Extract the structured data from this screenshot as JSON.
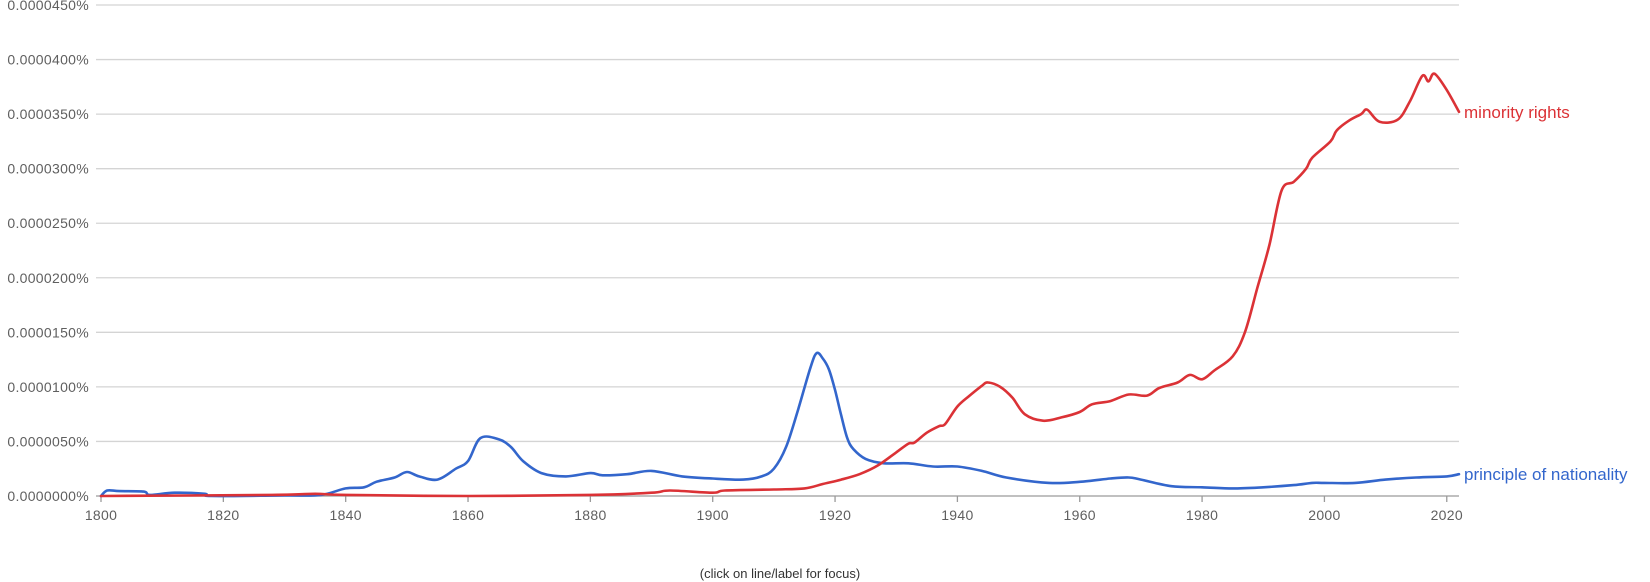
{
  "chart_data": {
    "type": "line",
    "title": "",
    "xlabel": "",
    "ylabel": "",
    "caption": "(click on line/label for focus)",
    "xlim": [
      1800,
      2022
    ],
    "ylim": [
      0,
      4.5e-05
    ],
    "y_unit": "percent",
    "grid": true,
    "legend_position": "inline-right",
    "x_ticks": [
      1800,
      1820,
      1840,
      1860,
      1880,
      1900,
      1920,
      1940,
      1960,
      1980,
      2000,
      2020
    ],
    "x_tick_labels": [
      "1800",
      "1820",
      "1840",
      "1860",
      "1880",
      "1900",
      "1920",
      "1940",
      "1960",
      "1980",
      "2000",
      "2020"
    ],
    "y_ticks": [
      0,
      5e-06,
      1e-05,
      1.5e-05,
      2e-05,
      2.5e-05,
      3e-05,
      3.5e-05,
      4e-05,
      4.5e-05
    ],
    "y_tick_labels": [
      "0.0000000%",
      "0.0000050%",
      "0.0000100%",
      "0.0000150%",
      "0.0000200%",
      "0.0000250%",
      "0.0000300%",
      "0.0000350%",
      "0.0000400%",
      "0.0000450%"
    ],
    "series": [
      {
        "name": "minority rights",
        "color": "#db3236",
        "x": [
          1800,
          1828,
          1835,
          1840,
          1860,
          1880,
          1890,
          1893,
          1900,
          1902,
          1910,
          1915,
          1918,
          1921,
          1924,
          1927,
          1930,
          1932,
          1933,
          1935,
          1937,
          1938,
          1940,
          1942,
          1944,
          1945,
          1947,
          1949,
          1951,
          1954,
          1957,
          1960,
          1962,
          1965,
          1968,
          1971,
          1973,
          1976,
          1978,
          1980,
          1982,
          1985,
          1987,
          1989,
          1991,
          1993,
          1995,
          1997,
          1998,
          2001,
          2002,
          2004,
          2006,
          2007,
          2009,
          2012,
          2014,
          2016,
          2017,
          2018,
          2020,
          2022
        ],
        "values": [
          0,
          1e-07,
          2e-07,
          1e-07,
          0,
          1e-07,
          3e-07,
          5e-07,
          3e-07,
          5e-07,
          6e-07,
          7e-07,
          1.1e-06,
          1.5e-06,
          2e-06,
          2.8e-06,
          4e-06,
          4.8e-06,
          4.9e-06,
          5.8e-06,
          6.4e-06,
          6.6e-06,
          8.2e-06,
          9.2e-06,
          1.01e-05,
          1.04e-05,
          1e-05,
          9e-06,
          7.5e-06,
          6.9e-06,
          7.2e-06,
          7.7e-06,
          8.4e-06,
          8.7e-06,
          9.3e-06,
          9.2e-06,
          9.9e-06,
          1.04e-05,
          1.11e-05,
          1.07e-05,
          1.15e-05,
          1.28e-05,
          1.5e-05,
          1.9e-05,
          2.3e-05,
          2.8e-05,
          2.88e-05,
          3e-05,
          3.1e-05,
          3.25e-05,
          3.35e-05,
          3.44e-05,
          3.5e-05,
          3.54e-05,
          3.43e-05,
          3.45e-05,
          3.62e-05,
          3.85e-05,
          3.8e-05,
          3.87e-05,
          3.72e-05,
          3.52e-05
        ]
      },
      {
        "name": "principle of nationality",
        "color": "#3366cc",
        "x": [
          1800,
          1801,
          1803,
          1807,
          1808,
          1812,
          1817,
          1818,
          1830,
          1836,
          1840,
          1843,
          1845,
          1848,
          1850,
          1852,
          1855,
          1858,
          1860,
          1862,
          1865,
          1867,
          1869,
          1872,
          1876,
          1880,
          1882,
          1886,
          1890,
          1895,
          1900,
          1905,
          1908,
          1910,
          1912,
          1914,
          1916,
          1917,
          1918,
          1919,
          1920,
          1921,
          1922,
          1923,
          1925,
          1928,
          1932,
          1936,
          1940,
          1944,
          1948,
          1955,
          1960,
          1965,
          1968,
          1970,
          1975,
          1980,
          1985,
          1990,
          1995,
          1998,
          2000,
          2005,
          2010,
          2015,
          2020,
          2022
        ],
        "values": [
          0,
          5e-07,
          4.5e-07,
          4e-07,
          1e-07,
          3e-07,
          2e-07,
          0,
          5e-08,
          1e-07,
          7e-07,
          8e-07,
          1.3e-06,
          1.7e-06,
          2.2e-06,
          1.8e-06,
          1.5e-06,
          2.5e-06,
          3.2e-06,
          5.3e-06,
          5.2e-06,
          4.5e-06,
          3.2e-06,
          2.1e-06,
          1.8e-06,
          2.1e-06,
          1.9e-06,
          2e-06,
          2.3e-06,
          1.8e-06,
          1.6e-06,
          1.5e-06,
          1.8e-06,
          2.5e-06,
          4.5e-06,
          8e-06,
          1.18e-05,
          1.31e-05,
          1.26e-05,
          1.16e-05,
          9.7e-06,
          7.4e-06,
          5.3e-06,
          4.3e-06,
          3.4e-06,
          3e-06,
          3e-06,
          2.7e-06,
          2.7e-06,
          2.3e-06,
          1.7e-06,
          1.2e-06,
          1.3e-06,
          1.6e-06,
          1.7e-06,
          1.5e-06,
          9e-07,
          8e-07,
          7e-07,
          8e-07,
          1e-06,
          1.2e-06,
          1.2e-06,
          1.2e-06,
          1.5e-06,
          1.7e-06,
          1.8e-06,
          2e-06
        ]
      }
    ]
  }
}
